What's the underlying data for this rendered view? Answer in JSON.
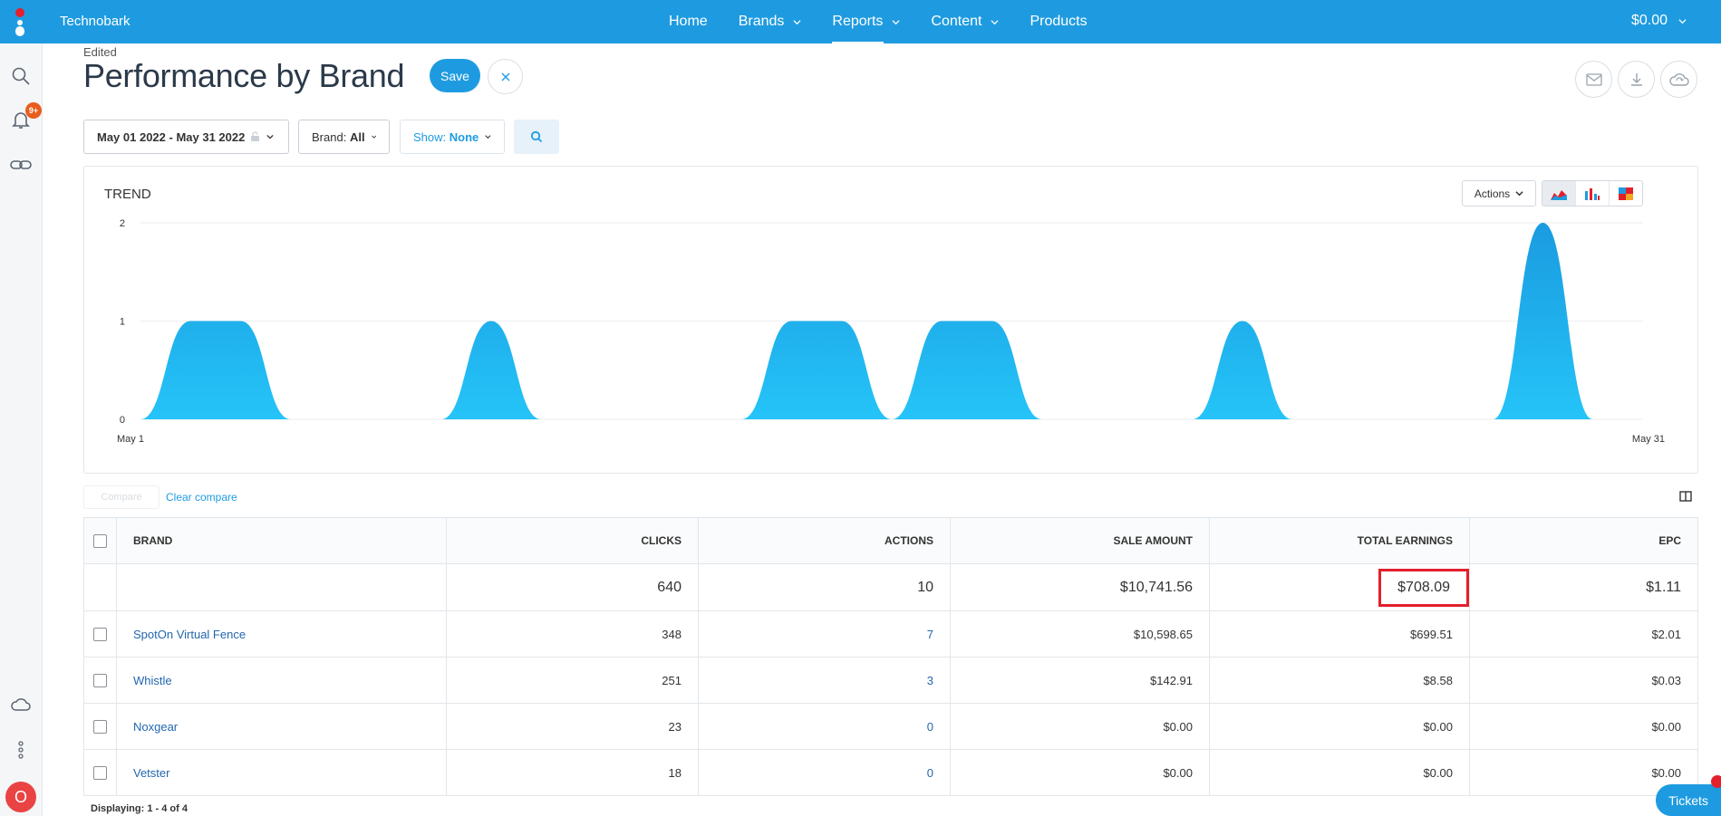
{
  "app": {
    "name": "Technobark"
  },
  "nav": {
    "items": [
      "Home",
      "Brands",
      "Reports",
      "Content",
      "Products"
    ],
    "active": "Reports",
    "balance": "$0.00"
  },
  "sidebar": {
    "notification_count": "9+",
    "avatar_initial": "O"
  },
  "page": {
    "status": "Edited",
    "title": "Performance by Brand",
    "save_label": "Save"
  },
  "filters": {
    "date_range": "May 01 2022 - May 31 2022",
    "brand_label": "Brand:",
    "brand_value": "All",
    "show_label": "Show:",
    "show_value": "None"
  },
  "trend": {
    "title": "TREND",
    "actions_label": "Actions",
    "x_start": "May 1",
    "x_end": "May 31"
  },
  "chart_data": {
    "type": "area",
    "x": [
      "May 1",
      "May 2",
      "May 3",
      "May 4",
      "May 5",
      "May 6",
      "May 7",
      "May 8",
      "May 9",
      "May 10",
      "May 11",
      "May 12",
      "May 13",
      "May 14",
      "May 15",
      "May 16",
      "May 17",
      "May 18",
      "May 19",
      "May 20",
      "May 21",
      "May 22",
      "May 23",
      "May 24",
      "May 25",
      "May 26",
      "May 27",
      "May 28",
      "May 29",
      "May 30",
      "May 31"
    ],
    "values": [
      0,
      1,
      1,
      0,
      0,
      0,
      0,
      1,
      0,
      0,
      0,
      0,
      0,
      1,
      1,
      0,
      1,
      1,
      0,
      0,
      0,
      0,
      1,
      0,
      0,
      0,
      0,
      0,
      2,
      0,
      0
    ],
    "yticks": [
      0,
      1,
      2
    ],
    "ylim": [
      0,
      2
    ],
    "color": "#1aa7ea"
  },
  "compare": {
    "compare_label": "Compare",
    "clear_label": "Clear compare"
  },
  "table": {
    "headers": [
      "BRAND",
      "CLICKS",
      "ACTIONS",
      "SALE AMOUNT",
      "TOTAL EARNINGS",
      "EPC"
    ],
    "totals": {
      "clicks": "640",
      "actions": "10",
      "sale_amount": "$10,741.56",
      "total_earnings": "$708.09",
      "epc": "$1.11"
    },
    "rows": [
      {
        "brand": "SpotOn Virtual Fence",
        "clicks": "348",
        "actions": "7",
        "sale_amount": "$10,598.65",
        "total_earnings": "$699.51",
        "epc": "$2.01"
      },
      {
        "brand": "Whistle",
        "clicks": "251",
        "actions": "3",
        "sale_amount": "$142.91",
        "total_earnings": "$8.58",
        "epc": "$0.03"
      },
      {
        "brand": "Noxgear",
        "clicks": "23",
        "actions": "0",
        "sale_amount": "$0.00",
        "total_earnings": "$0.00",
        "epc": "$0.00"
      },
      {
        "brand": "Vetster",
        "clicks": "18",
        "actions": "0",
        "sale_amount": "$0.00",
        "total_earnings": "$0.00",
        "epc": "$0.00"
      }
    ],
    "footer": "Displaying: 1 - 4 of 4"
  },
  "support": {
    "tickets_label": "Tickets"
  },
  "icons": [
    "app-logo-icon",
    "search-icon",
    "bell-icon",
    "link-icon",
    "cloud-icon",
    "more-vertical-icon",
    "mail-icon",
    "download-icon",
    "cloud-sync-icon",
    "area-chart-icon",
    "bar-chart-icon",
    "heatmap-icon",
    "columns-icon",
    "chevron-down-icon",
    "lock-icon"
  ]
}
